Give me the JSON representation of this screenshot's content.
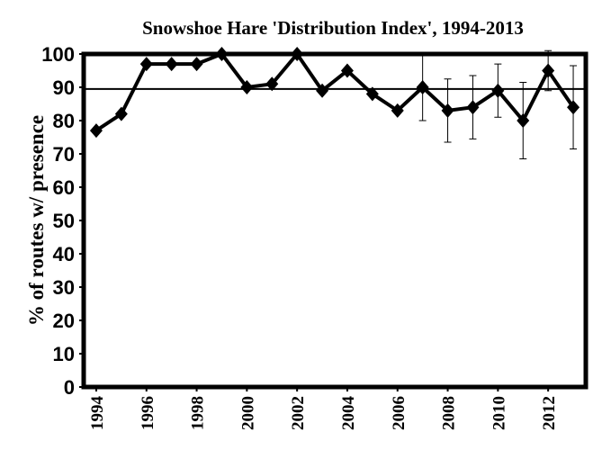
{
  "chart_data": {
    "type": "line",
    "title": "Snowshoe Hare 'Distribution Index', 1994-2013",
    "y_label": "% of routes w/ presence",
    "x": [
      1994,
      1995,
      1996,
      1997,
      1998,
      1999,
      2000,
      2001,
      2002,
      2003,
      2004,
      2005,
      2006,
      2007,
      2008,
      2009,
      2010,
      2011,
      2012,
      2013
    ],
    "series": [
      {
        "color": "#000000",
        "values": [
          77,
          82,
          97,
          97,
          97,
          100,
          90,
          91,
          100,
          89,
          95,
          88,
          83,
          90,
          83,
          84,
          89,
          80,
          95,
          84
        ],
        "errors": [
          null,
          null,
          null,
          null,
          null,
          null,
          null,
          null,
          null,
          null,
          null,
          null,
          null,
          10,
          9.5,
          9.5,
          8,
          11.5,
          6,
          12.5
        ]
      }
    ],
    "reference_line": 89.5,
    "xlim": [
      1993.5,
      2013.5
    ],
    "xticks": [
      1994,
      1996,
      1998,
      2000,
      2002,
      2004,
      2006,
      2008,
      2010,
      2012
    ],
    "ylim": [
      0,
      100
    ],
    "yticks": [
      0,
      10,
      20,
      30,
      40,
      50,
      60,
      70,
      80,
      90,
      100
    ]
  }
}
